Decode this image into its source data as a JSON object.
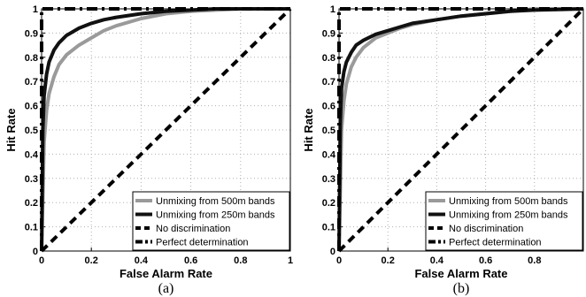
{
  "chart_data": [
    {
      "type": "line",
      "caption": "(a)",
      "xlabel": "False Alarm Rate",
      "ylabel": "Hit Rate",
      "xlim": [
        0,
        1
      ],
      "ylim": [
        0,
        1
      ],
      "grid": true,
      "legend_position": "bottom-right",
      "x_ticks": [
        "0",
        "0.2",
        "0.4",
        "0.6",
        "0.8",
        "1"
      ],
      "y_ticks": [
        "0",
        "0.1",
        "0.2",
        "0.3",
        "0.4",
        "0.5",
        "0.6",
        "0.7",
        "0.8",
        "0.9",
        "1"
      ],
      "series": [
        {
          "name": "Unmixing from 500m bands",
          "color": "#9a9a9a",
          "style": "solid",
          "x": [
            0,
            0.01,
            0.02,
            0.03,
            0.05,
            0.07,
            0.1,
            0.15,
            0.2,
            0.25,
            0.3,
            0.4,
            0.5,
            0.6,
            0.7,
            0.8,
            1.0
          ],
          "y": [
            0,
            0.45,
            0.58,
            0.65,
            0.72,
            0.77,
            0.81,
            0.85,
            0.88,
            0.91,
            0.93,
            0.96,
            0.98,
            0.99,
            0.995,
            1.0,
            1.0
          ]
        },
        {
          "name": "Unmixing from 250m bands",
          "color": "#111111",
          "style": "solid",
          "x": [
            0,
            0.005,
            0.01,
            0.02,
            0.03,
            0.05,
            0.07,
            0.1,
            0.15,
            0.2,
            0.25,
            0.3,
            0.4,
            0.5,
            0.6,
            0.7,
            1.0
          ],
          "y": [
            0,
            0.5,
            0.64,
            0.73,
            0.78,
            0.83,
            0.86,
            0.89,
            0.92,
            0.94,
            0.955,
            0.965,
            0.98,
            0.99,
            0.995,
            1.0,
            1.0
          ]
        },
        {
          "name": "No discrimination",
          "color": "#000000",
          "style": "dashed",
          "x": [
            0,
            1
          ],
          "y": [
            0,
            1
          ]
        },
        {
          "name": "Perfect determination",
          "color": "#000000",
          "style": "dashdot",
          "x": [
            0,
            0,
            1
          ],
          "y": [
            0,
            1,
            1
          ]
        }
      ]
    },
    {
      "type": "line",
      "caption": "(b)",
      "xlabel": "False Alarm Rate",
      "ylabel": "Hit Rate",
      "xlim": [
        0,
        1
      ],
      "ylim": [
        0,
        1
      ],
      "grid": true,
      "legend_position": "bottom-right",
      "x_ticks": [
        "0",
        "0.2",
        "0.4",
        "0.6",
        "0.8"
      ],
      "y_ticks": [
        "0",
        "0.1",
        "0.2",
        "0.3",
        "0.4",
        "0.5",
        "0.6",
        "0.7",
        "0.8",
        "0.9",
        "1"
      ],
      "series": [
        {
          "name": "Unmixing from 500m bands",
          "color": "#9a9a9a",
          "style": "solid",
          "x": [
            0,
            0.01,
            0.02,
            0.03,
            0.05,
            0.07,
            0.1,
            0.15,
            0.2,
            0.25,
            0.3,
            0.4,
            0.5,
            0.6,
            0.7,
            0.8,
            1.0
          ],
          "y": [
            0,
            0.5,
            0.62,
            0.69,
            0.76,
            0.8,
            0.84,
            0.88,
            0.9,
            0.92,
            0.935,
            0.955,
            0.97,
            0.98,
            0.99,
            1.0,
            1.0
          ]
        },
        {
          "name": "Unmixing from 250m bands",
          "color": "#111111",
          "style": "solid",
          "x": [
            0,
            0.005,
            0.01,
            0.02,
            0.03,
            0.05,
            0.07,
            0.1,
            0.15,
            0.2,
            0.25,
            0.3,
            0.4,
            0.5,
            0.6,
            0.7,
            0.8,
            1.0
          ],
          "y": [
            0,
            0.52,
            0.67,
            0.74,
            0.78,
            0.82,
            0.85,
            0.87,
            0.895,
            0.91,
            0.925,
            0.94,
            0.955,
            0.97,
            0.98,
            0.99,
            0.995,
            1.0
          ]
        },
        {
          "name": "No discrimination",
          "color": "#000000",
          "style": "dashed",
          "x": [
            0,
            1
          ],
          "y": [
            0,
            1
          ]
        },
        {
          "name": "Perfect determination",
          "color": "#000000",
          "style": "dashdot",
          "x": [
            0,
            0,
            1
          ],
          "y": [
            0,
            1,
            1
          ]
        }
      ]
    }
  ]
}
